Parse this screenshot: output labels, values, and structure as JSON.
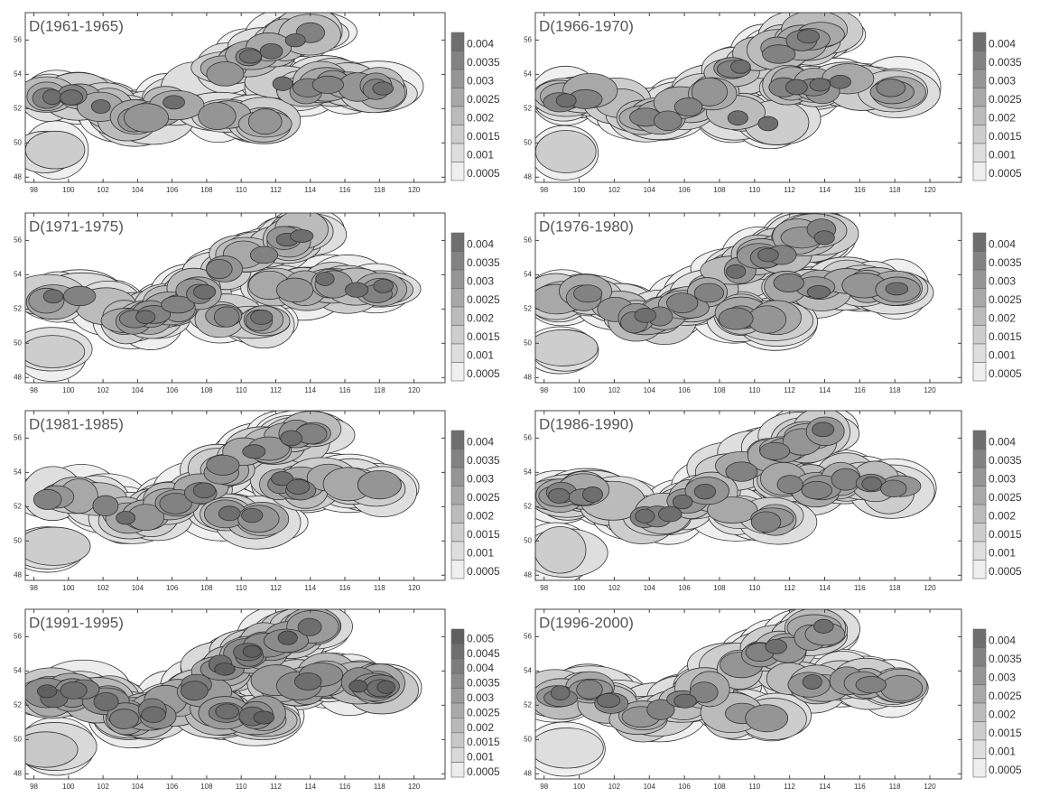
{
  "chart_data": [
    {
      "type": "contour",
      "title": "D(1961-1965)",
      "xlim": [
        97.5,
        121.8
      ],
      "xticks": [
        98,
        100,
        102,
        104,
        106,
        108,
        110,
        112,
        114,
        116,
        118,
        120
      ],
      "ylim": [
        47.7,
        57.6
      ],
      "yticks": [
        48,
        50,
        52,
        54,
        56
      ],
      "levels": [
        0.004,
        0.0035,
        0.003,
        0.0025,
        0.002,
        0.0015,
        0.001,
        0.0005
      ],
      "colors": [
        "#6e6e6e",
        "#828282",
        "#959595",
        "#a8a8a8",
        "#bbbbbb",
        "#cdcdcd",
        "#dedede",
        "#efefef"
      ]
    },
    {
      "type": "contour",
      "title": "D(1966-1970)",
      "xlim": [
        97.5,
        121.8
      ],
      "xticks": [
        98,
        100,
        102,
        104,
        106,
        108,
        110,
        112,
        114,
        116,
        118,
        120
      ],
      "ylim": [
        47.7,
        57.6
      ],
      "yticks": [
        48,
        50,
        52,
        54,
        56
      ],
      "levels": [
        0.004,
        0.0035,
        0.003,
        0.0025,
        0.002,
        0.0015,
        0.001,
        0.0005
      ],
      "colors": [
        "#6e6e6e",
        "#828282",
        "#959595",
        "#a8a8a8",
        "#bbbbbb",
        "#cdcdcd",
        "#dedede",
        "#efefef"
      ]
    },
    {
      "type": "contour",
      "title": "D(1971-1975)",
      "xlim": [
        97.5,
        121.8
      ],
      "xticks": [
        98,
        100,
        102,
        104,
        106,
        108,
        110,
        112,
        114,
        116,
        118,
        120
      ],
      "ylim": [
        47.7,
        57.6
      ],
      "yticks": [
        48,
        50,
        52,
        54,
        56
      ],
      "levels": [
        0.004,
        0.0035,
        0.003,
        0.0025,
        0.002,
        0.0015,
        0.001,
        0.0005
      ],
      "colors": [
        "#6e6e6e",
        "#828282",
        "#959595",
        "#a8a8a8",
        "#bbbbbb",
        "#cdcdcd",
        "#dedede",
        "#efefef"
      ]
    },
    {
      "type": "contour",
      "title": "D(1976-1980)",
      "xlim": [
        97.5,
        121.8
      ],
      "xticks": [
        98,
        100,
        102,
        104,
        106,
        108,
        110,
        112,
        114,
        116,
        118,
        120
      ],
      "ylim": [
        47.7,
        57.6
      ],
      "yticks": [
        48,
        50,
        52,
        54,
        56
      ],
      "levels": [
        0.004,
        0.0035,
        0.003,
        0.0025,
        0.002,
        0.0015,
        0.001,
        0.0005
      ],
      "colors": [
        "#6e6e6e",
        "#828282",
        "#959595",
        "#a8a8a8",
        "#bbbbbb",
        "#cdcdcd",
        "#dedede",
        "#efefef"
      ]
    },
    {
      "type": "contour",
      "title": "D(1981-1985)",
      "xlim": [
        97.5,
        121.8
      ],
      "xticks": [
        98,
        100,
        102,
        104,
        106,
        108,
        110,
        112,
        114,
        116,
        118,
        120
      ],
      "ylim": [
        47.7,
        57.6
      ],
      "yticks": [
        48,
        50,
        52,
        54,
        56
      ],
      "levels": [
        0.004,
        0.0035,
        0.003,
        0.0025,
        0.002,
        0.0015,
        0.001,
        0.0005
      ],
      "colors": [
        "#6e6e6e",
        "#828282",
        "#959595",
        "#a8a8a8",
        "#bbbbbb",
        "#cdcdcd",
        "#dedede",
        "#efefef"
      ]
    },
    {
      "type": "contour",
      "title": "D(1986-1990)",
      "xlim": [
        97.5,
        121.8
      ],
      "xticks": [
        98,
        100,
        102,
        104,
        106,
        108,
        110,
        112,
        114,
        116,
        118,
        120
      ],
      "ylim": [
        47.7,
        57.6
      ],
      "yticks": [
        48,
        50,
        52,
        54,
        56
      ],
      "levels": [
        0.004,
        0.0035,
        0.003,
        0.0025,
        0.002,
        0.0015,
        0.001,
        0.0005
      ],
      "colors": [
        "#6e6e6e",
        "#828282",
        "#959595",
        "#a8a8a8",
        "#bbbbbb",
        "#cdcdcd",
        "#dedede",
        "#efefef"
      ]
    },
    {
      "type": "contour",
      "title": "D(1991-1995)",
      "xlim": [
        97.5,
        121.8
      ],
      "xticks": [
        98,
        100,
        102,
        104,
        106,
        108,
        110,
        112,
        114,
        116,
        118,
        120
      ],
      "ylim": [
        47.7,
        57.6
      ],
      "yticks": [
        48,
        50,
        52,
        54,
        56
      ],
      "levels": [
        0.005,
        0.0045,
        0.004,
        0.0035,
        0.003,
        0.0025,
        0.002,
        0.0015,
        0.001,
        0.0005
      ],
      "colors": [
        "#5f5f5f",
        "#6e6e6e",
        "#7d7d7d",
        "#8c8c8c",
        "#9b9b9b",
        "#aaaaaa",
        "#b9b9b9",
        "#c8c8c8",
        "#d9d9d9",
        "#ececec"
      ]
    },
    {
      "type": "contour",
      "title": "D(1996-2000)",
      "xlim": [
        97.5,
        121.8
      ],
      "xticks": [
        98,
        100,
        102,
        104,
        106,
        108,
        110,
        112,
        114,
        116,
        118,
        120
      ],
      "ylim": [
        47.7,
        57.6
      ],
      "yticks": [
        48,
        50,
        52,
        54,
        56
      ],
      "levels": [
        0.004,
        0.0035,
        0.003,
        0.0025,
        0.002,
        0.0015,
        0.001,
        0.0005
      ],
      "colors": [
        "#6e6e6e",
        "#828282",
        "#959595",
        "#a8a8a8",
        "#bbbbbb",
        "#cdcdcd",
        "#dedede",
        "#efefef"
      ]
    }
  ]
}
